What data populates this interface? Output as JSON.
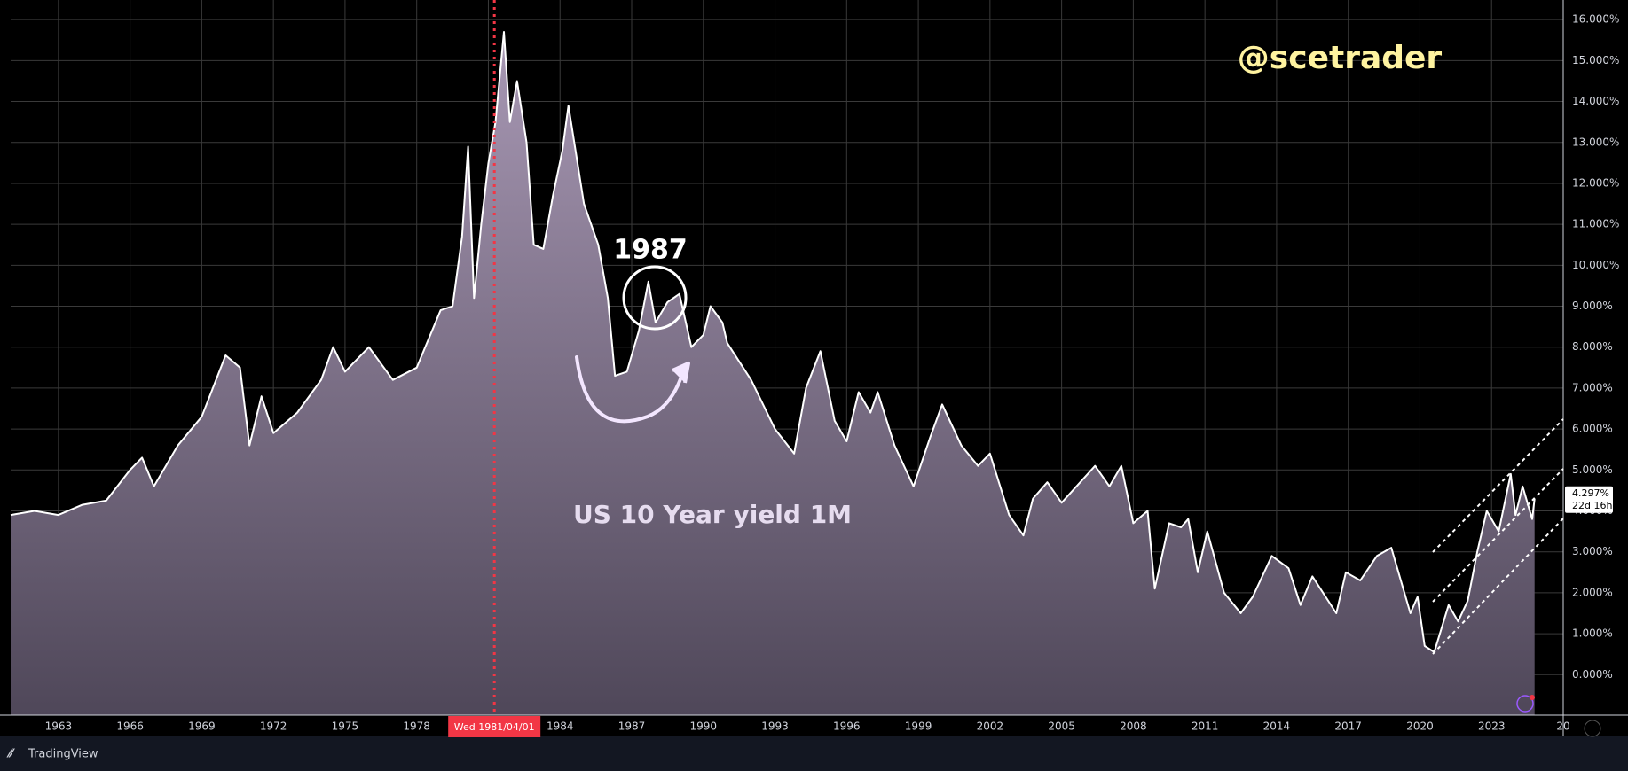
{
  "chart_data": {
    "type": "area",
    "title": "US 10 Year yield 1M",
    "watermark": "@scetrader",
    "annotation": "1987",
    "brand": "TradingView",
    "x": [
      1961.0,
      1962.0,
      1963.0,
      1964.0,
      1965.0,
      1966.0,
      1966.5,
      1967.0,
      1968.0,
      1969.0,
      1970.0,
      1970.6,
      1971.0,
      1971.5,
      1972.0,
      1973.0,
      1974.0,
      1974.5,
      1975.0,
      1976.0,
      1977.0,
      1978.0,
      1979.0,
      1979.5,
      1979.9,
      1980.15,
      1980.4,
      1980.7,
      1981.0,
      1981.3,
      1981.65,
      1981.9,
      1982.2,
      1982.6,
      1982.9,
      1983.3,
      1983.7,
      1984.1,
      1984.35,
      1985.0,
      1985.6,
      1986.0,
      1986.3,
      1986.8,
      1987.3,
      1987.7,
      1988.0,
      1988.5,
      1989.0,
      1989.5,
      1990.0,
      1990.3,
      1990.8,
      1991.0,
      1992.0,
      1993.0,
      1993.8,
      1994.3,
      1994.9,
      1995.5,
      1996.0,
      1996.5,
      1997.0,
      1997.3,
      1998.0,
      1998.8,
      1999.5,
      2000.0,
      2000.8,
      2001.5,
      2002.0,
      2002.8,
      2003.4,
      2003.8,
      2004.4,
      2005.0,
      2006.4,
      2007.0,
      2007.5,
      2008.0,
      2008.6,
      2008.9,
      2009.5,
      2010.0,
      2010.3,
      2010.7,
      2011.1,
      2011.8,
      2012.5,
      2013.0,
      2013.8,
      2014.5,
      2015.0,
      2015.5,
      2016.5,
      2016.9,
      2017.5,
      2018.2,
      2018.8,
      2019.6,
      2019.9,
      2020.2,
      2020.6,
      2021.2,
      2021.6,
      2022.0,
      2022.4,
      2022.8,
      2023.3,
      2023.8,
      2024.0,
      2024.3,
      2024.7,
      2024.8
    ],
    "values": [
      3.9,
      4.0,
      3.9,
      4.15,
      4.25,
      5.0,
      5.3,
      4.6,
      5.6,
      6.3,
      7.8,
      7.5,
      5.6,
      6.8,
      5.9,
      6.4,
      7.2,
      8.0,
      7.4,
      8.0,
      7.2,
      7.5,
      8.9,
      9.0,
      10.7,
      12.9,
      9.2,
      11.0,
      12.5,
      13.5,
      15.7,
      13.5,
      14.5,
      13.0,
      10.5,
      10.4,
      11.7,
      12.8,
      13.9,
      11.5,
      10.5,
      9.2,
      7.3,
      7.4,
      8.4,
      9.6,
      8.6,
      9.1,
      9.3,
      8.0,
      8.3,
      9.0,
      8.6,
      8.1,
      7.2,
      6.0,
      5.4,
      7.0,
      7.9,
      6.2,
      5.7,
      6.9,
      6.4,
      6.9,
      5.6,
      4.6,
      5.8,
      6.6,
      5.6,
      5.1,
      5.4,
      3.9,
      3.4,
      4.3,
      4.7,
      4.2,
      5.1,
      4.6,
      5.1,
      3.7,
      4.0,
      2.1,
      3.7,
      3.6,
      3.8,
      2.5,
      3.5,
      2.0,
      1.5,
      1.9,
      2.9,
      2.6,
      1.7,
      2.4,
      1.5,
      2.5,
      2.3,
      2.9,
      3.1,
      1.5,
      1.9,
      0.7,
      0.55,
      1.7,
      1.3,
      1.8,
      3.0,
      4.0,
      3.5,
      4.9,
      3.9,
      4.6,
      3.8,
      4.297
    ],
    "price_label": "4.297%",
    "countdown": "22d 16h",
    "crosshair": {
      "value": 1981.25,
      "label": "Wed 1981/04/01"
    },
    "xlim": [
      1961,
      2026
    ],
    "xticks": [
      1963,
      1966,
      1969,
      1972,
      1975,
      1978,
      1981,
      1984,
      1987,
      1990,
      1993,
      1996,
      1999,
      2002,
      2005,
      2008,
      2011,
      2014,
      2017,
      2020,
      2023,
      {
        "value": 2026,
        "label": "20"
      }
    ],
    "ylim": [
      -0.99,
      16.48
    ],
    "yticks": [
      {
        "value": 0,
        "label": "0.000%"
      },
      {
        "value": 1,
        "label": "1.000%"
      },
      {
        "value": 2,
        "label": "2.000%"
      },
      {
        "value": 3,
        "label": "3.000%"
      },
      {
        "value": 4,
        "label": "4.000%"
      },
      {
        "value": 5,
        "label": "5.000%"
      },
      {
        "value": 6,
        "label": "6.000%"
      },
      {
        "value": 7,
        "label": "7.000%"
      },
      {
        "value": 8,
        "label": "8.000%"
      },
      {
        "value": 9,
        "label": "9.000%"
      },
      {
        "value": 10,
        "label": "10.000%"
      },
      {
        "value": 11,
        "label": "11.000%"
      },
      {
        "value": 12,
        "label": "12.000%"
      },
      {
        "value": 13,
        "label": "13.000%"
      },
      {
        "value": 14,
        "label": "14.000%"
      },
      {
        "value": 15,
        "label": "15.000%"
      },
      {
        "value": 16,
        "label": "16.000%"
      }
    ],
    "grid": true,
    "color": "#ffffff",
    "fill_top": "#a898b4",
    "fill_bottom": "#4f4759",
    "crosshair_color": "#f23645"
  }
}
